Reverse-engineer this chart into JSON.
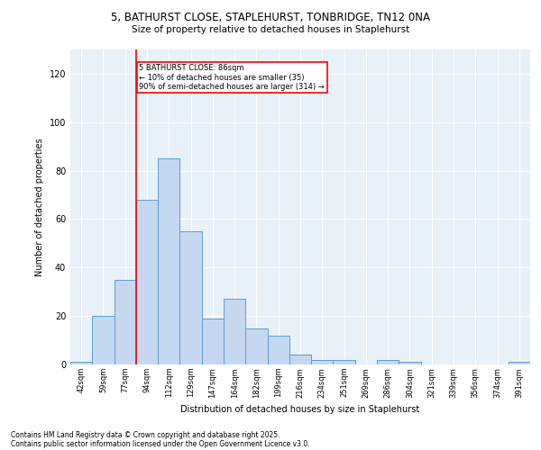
{
  "title_line1": "5, BATHURST CLOSE, STAPLEHURST, TONBRIDGE, TN12 0NA",
  "title_line2": "Size of property relative to detached houses in Staplehurst",
  "xlabel": "Distribution of detached houses by size in Staplehurst",
  "ylabel": "Number of detached properties",
  "categories": [
    "42sqm",
    "59sqm",
    "77sqm",
    "94sqm",
    "112sqm",
    "129sqm",
    "147sqm",
    "164sqm",
    "182sqm",
    "199sqm",
    "216sqm",
    "234sqm",
    "251sqm",
    "269sqm",
    "286sqm",
    "304sqm",
    "321sqm",
    "339sqm",
    "356sqm",
    "374sqm",
    "391sqm"
  ],
  "values": [
    1,
    20,
    35,
    68,
    85,
    55,
    19,
    27,
    15,
    12,
    4,
    2,
    2,
    0,
    2,
    1,
    0,
    0,
    0,
    0,
    1
  ],
  "bar_color": "#c5d8f0",
  "bar_edge_color": "#5b9bd5",
  "vline_color": "red",
  "vline_x_index": 2.5,
  "annotation_text": "5 BATHURST CLOSE: 86sqm\n← 10% of detached houses are smaller (35)\n90% of semi-detached houses are larger (314) →",
  "annotation_box_color": "white",
  "annotation_box_edge": "red",
  "ylim": [
    0,
    130
  ],
  "yticks": [
    0,
    20,
    40,
    60,
    80,
    100,
    120
  ],
  "background_color": "#e8f0f8",
  "grid_color": "white",
  "footnote1": "Contains HM Land Registry data © Crown copyright and database right 2025.",
  "footnote2": "Contains public sector information licensed under the Open Government Licence v3.0."
}
